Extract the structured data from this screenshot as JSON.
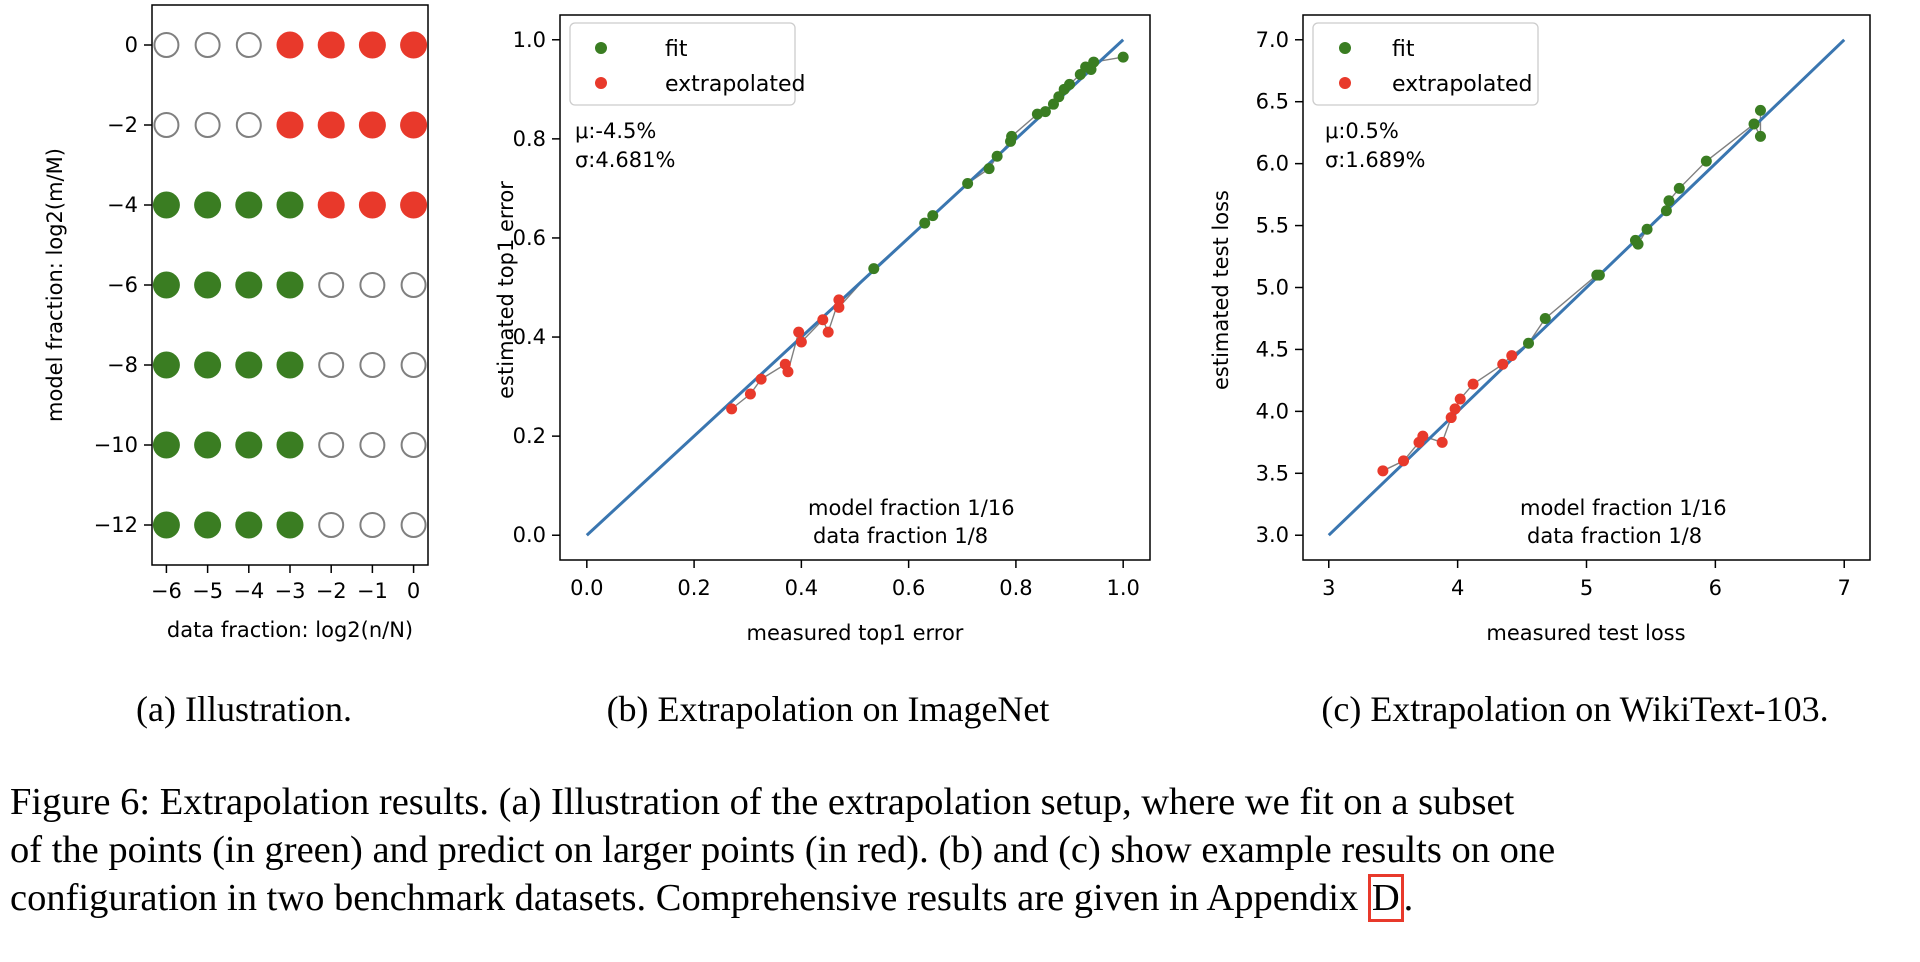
{
  "colors": {
    "fit": "#3a7d22",
    "extrapolated": "#e8392b",
    "ideal_line": "#3a76b0",
    "connector": "#808080",
    "empty_marker_edge": "#808080"
  },
  "subcaptions": {
    "a": "(a) Illustration.",
    "b": "(b) Extrapolation on ImageNet",
    "c": "(c) Extrapolation on WikiText-103."
  },
  "caption": {
    "line1": "Figure 6: Extrapolation results. (a) Illustration of the extrapolation setup, where we fit on a subset",
    "line2": "of the points (in green) and predict on larger points (in red). (b) and (c) show example results on one",
    "line3_pre": "configuration in two benchmark datasets. Comprehensive results are given in Appendix ",
    "line3_ref": "D",
    "line3_post": "."
  },
  "chart_data": [
    {
      "type": "scatter",
      "id": "a",
      "xlabel": "data fraction: log2(n/N)",
      "ylabel": "model fraction: log2(m/M)",
      "x_ticks": [
        -6,
        -5,
        -4,
        -3,
        -2,
        -1,
        0
      ],
      "y_ticks": [
        0,
        -2,
        -4,
        -6,
        -8,
        -10,
        -12
      ],
      "xlim": [
        -6.35,
        0.35
      ],
      "ylim": [
        -13.0,
        1.0
      ],
      "grid": [
        {
          "y": 0,
          "states": [
            "empty",
            "empty",
            "empty",
            "extrapolated",
            "extrapolated",
            "extrapolated",
            "extrapolated"
          ]
        },
        {
          "y": -2,
          "states": [
            "empty",
            "empty",
            "empty",
            "extrapolated",
            "extrapolated",
            "extrapolated",
            "extrapolated"
          ]
        },
        {
          "y": -4,
          "states": [
            "fit",
            "fit",
            "fit",
            "fit",
            "extrapolated",
            "extrapolated",
            "extrapolated"
          ]
        },
        {
          "y": -6,
          "states": [
            "fit",
            "fit",
            "fit",
            "fit",
            "empty",
            "empty",
            "empty"
          ]
        },
        {
          "y": -8,
          "states": [
            "fit",
            "fit",
            "fit",
            "fit",
            "empty",
            "empty",
            "empty"
          ]
        },
        {
          "y": -10,
          "states": [
            "fit",
            "fit",
            "fit",
            "fit",
            "empty",
            "empty",
            "empty"
          ]
        },
        {
          "y": -12,
          "states": [
            "fit",
            "fit",
            "fit",
            "fit",
            "empty",
            "empty",
            "empty"
          ]
        }
      ]
    },
    {
      "type": "scatter",
      "id": "b",
      "xlabel": "measured top1 error",
      "ylabel": "estimated top1 error",
      "xlim": [
        -0.05,
        1.05
      ],
      "ylim": [
        -0.05,
        1.05
      ],
      "x_ticks": [
        "0.0",
        "0.2",
        "0.4",
        "0.6",
        "0.8",
        "1.0"
      ],
      "y_ticks": [
        "0.0",
        "0.2",
        "0.4",
        "0.6",
        "0.8",
        "1.0"
      ],
      "legend": {
        "location": "upper-left",
        "entries": [
          {
            "label": "fit",
            "color_key": "fit"
          },
          {
            "label": "extrapolated",
            "color_key": "extrapolated"
          }
        ]
      },
      "stats": {
        "mu": "μ:-4.5%",
        "sigma": "σ:4.681%"
      },
      "annotation": {
        "line1": "model fraction 1/16",
        "line2": "data fraction 1/8"
      },
      "ideal_line": [
        [
          0,
          0
        ],
        [
          1,
          1
        ]
      ],
      "fit": [
        [
          0.535,
          0.538
        ],
        [
          0.63,
          0.63
        ],
        [
          0.645,
          0.645
        ],
        [
          0.71,
          0.71
        ],
        [
          0.75,
          0.74
        ],
        [
          0.765,
          0.765
        ],
        [
          0.79,
          0.795
        ],
        [
          0.792,
          0.805
        ],
        [
          0.84,
          0.85
        ],
        [
          0.855,
          0.855
        ],
        [
          0.87,
          0.87
        ],
        [
          0.88,
          0.885
        ],
        [
          0.89,
          0.9
        ],
        [
          0.9,
          0.91
        ],
        [
          0.92,
          0.93
        ],
        [
          0.93,
          0.945
        ],
        [
          0.94,
          0.94
        ],
        [
          0.945,
          0.955
        ],
        [
          1.0,
          0.965
        ]
      ],
      "extrapolated": [
        [
          0.27,
          0.255
        ],
        [
          0.305,
          0.285
        ],
        [
          0.325,
          0.315
        ],
        [
          0.37,
          0.345
        ],
        [
          0.375,
          0.33
        ],
        [
          0.395,
          0.41
        ],
        [
          0.4,
          0.39
        ],
        [
          0.44,
          0.435
        ],
        [
          0.45,
          0.41
        ],
        [
          0.47,
          0.475
        ],
        [
          0.47,
          0.46
        ]
      ]
    },
    {
      "type": "scatter",
      "id": "c",
      "xlabel": "measured test loss",
      "ylabel": "estimated test loss",
      "xlim": [
        2.8,
        7.2
      ],
      "ylim": [
        2.8,
        7.2
      ],
      "x_ticks": [
        "3",
        "4",
        "5",
        "6",
        "7"
      ],
      "y_ticks": [
        "3.0",
        "3.5",
        "4.0",
        "4.5",
        "5.0",
        "5.5",
        "6.0",
        "6.5",
        "7.0"
      ],
      "legend": {
        "location": "upper-left",
        "entries": [
          {
            "label": "fit",
            "color_key": "fit"
          },
          {
            "label": "extrapolated",
            "color_key": "extrapolated"
          }
        ]
      },
      "stats": {
        "mu": "μ:0.5%",
        "sigma": "σ:1.689%"
      },
      "annotation": {
        "line1": "model fraction 1/16",
        "line2": "data fraction 1/8"
      },
      "ideal_line": [
        [
          3,
          3
        ],
        [
          7,
          7
        ]
      ],
      "fit": [
        [
          4.55,
          4.55
        ],
        [
          4.68,
          4.75
        ],
        [
          5.08,
          5.1
        ],
        [
          5.1,
          5.1
        ],
        [
          5.38,
          5.38
        ],
        [
          5.4,
          5.35
        ],
        [
          5.47,
          5.47
        ],
        [
          5.62,
          5.62
        ],
        [
          5.64,
          5.7
        ],
        [
          5.72,
          5.8
        ],
        [
          5.93,
          6.02
        ],
        [
          6.3,
          6.32
        ],
        [
          6.35,
          6.22
        ],
        [
          6.35,
          6.43
        ]
      ],
      "extrapolated": [
        [
          3.42,
          3.52
        ],
        [
          3.58,
          3.6
        ],
        [
          3.7,
          3.75
        ],
        [
          3.73,
          3.8
        ],
        [
          3.88,
          3.75
        ],
        [
          3.95,
          3.95
        ],
        [
          3.98,
          4.02
        ],
        [
          4.02,
          4.1
        ],
        [
          4.12,
          4.22
        ],
        [
          4.35,
          4.38
        ],
        [
          4.42,
          4.45
        ]
      ]
    }
  ]
}
